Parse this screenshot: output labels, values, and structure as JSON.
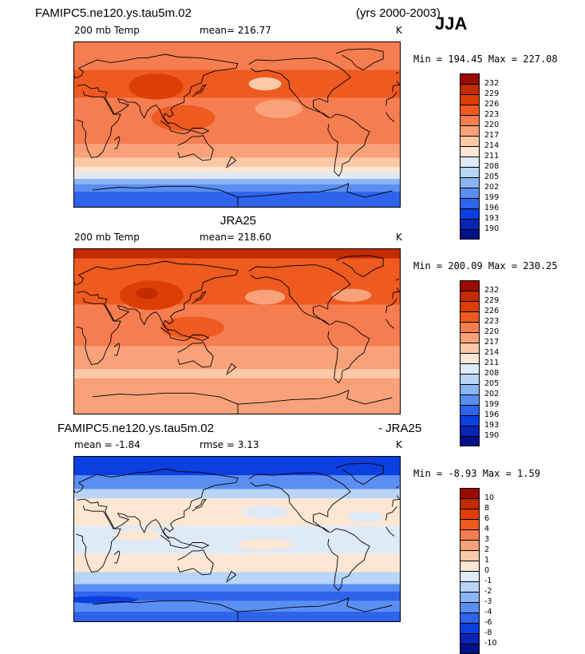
{
  "header": {
    "case_title": "FAMIPC5.ne120.ys.tau5m.02",
    "years": "(yrs 2000-2003)",
    "season": "JJA"
  },
  "chart_data": [
    {
      "type": "heatmap",
      "title": "",
      "field_label": "200 mb Temp",
      "units": "K",
      "mean_label": "mean=",
      "mean": "216.77",
      "minmax_text": "Min = 194.45 Max = 227.08",
      "colorbar_ticks": [
        "232",
        "229",
        "226",
        "223",
        "220",
        "217",
        "214",
        "211",
        "208",
        "205",
        "202",
        "199",
        "196",
        "193",
        "190"
      ],
      "colorbar_colors": [
        "#9b0a00",
        "#c22a00",
        "#dc3e05",
        "#ee5a20",
        "#f67d50",
        "#f9a27a",
        "#fcc9a8",
        "#fde7d3",
        "#deeaf8",
        "#b8d4f7",
        "#8ab4f5",
        "#5b8ef2",
        "#2e63ec",
        "#0b3fdf",
        "#0a24b4",
        "#00118a"
      ],
      "zonal_bands": [
        {
          "lat_top": 90,
          "lat_bottom": 78,
          "value": 221
        },
        {
          "lat_top": 78,
          "lat_bottom": 60,
          "value": 222
        },
        {
          "lat_top": 60,
          "lat_bottom": 30,
          "value": 223
        },
        {
          "lat_top": 30,
          "lat_bottom": 0,
          "value": 220
        },
        {
          "lat_top": 0,
          "lat_bottom": -20,
          "value": 221
        },
        {
          "lat_top": -20,
          "lat_bottom": -35,
          "value": 218
        },
        {
          "lat_top": -35,
          "lat_bottom": -45,
          "value": 215
        },
        {
          "lat_top": -45,
          "lat_bottom": -52,
          "value": 212
        },
        {
          "lat_top": -52,
          "lat_bottom": -58,
          "value": 208
        },
        {
          "lat_top": -58,
          "lat_bottom": -64,
          "value": 204
        },
        {
          "lat_top": -64,
          "lat_bottom": -72,
          "value": 200
        },
        {
          "lat_top": -72,
          "lat_bottom": -90,
          "value": 197
        }
      ],
      "blobs": [
        {
          "lon": 90,
          "lat": 42,
          "rx": 30,
          "ry": 14,
          "value": 226
        },
        {
          "lon": -150,
          "lat": 45,
          "rx": 18,
          "ry": 7,
          "value": 216
        },
        {
          "lon": -135,
          "lat": 18,
          "rx": 26,
          "ry": 10,
          "value": 218
        },
        {
          "lon": 120,
          "lat": 8,
          "rx": 35,
          "ry": 14,
          "value": 223
        },
        {
          "lon": -35,
          "lat": 15,
          "rx": 30,
          "ry": 12,
          "value": 222
        }
      ]
    },
    {
      "type": "heatmap",
      "title": "JRA25",
      "field_label": "200 mb Temp",
      "units": "K",
      "mean_label": "mean=",
      "mean": "218.60",
      "minmax_text": "Min = 200.09 Max = 230.25",
      "colorbar_ticks": [
        "232",
        "229",
        "226",
        "223",
        "220",
        "217",
        "214",
        "211",
        "208",
        "205",
        "202",
        "199",
        "196",
        "193",
        "190"
      ],
      "colorbar_colors": [
        "#9b0a00",
        "#c22a00",
        "#dc3e05",
        "#ee5a20",
        "#f67d50",
        "#f9a27a",
        "#fcc9a8",
        "#fde7d3",
        "#deeaf8",
        "#b8d4f7",
        "#8ab4f5",
        "#5b8ef2",
        "#2e63ec",
        "#0b3fdf",
        "#0a24b4",
        "#00118a"
      ],
      "zonal_bands": [
        {
          "lat_top": 90,
          "lat_bottom": 80,
          "value": 230
        },
        {
          "lat_top": 80,
          "lat_bottom": 65,
          "value": 225
        },
        {
          "lat_top": 65,
          "lat_bottom": 30,
          "value": 223
        },
        {
          "lat_top": 30,
          "lat_bottom": 5,
          "value": 220
        },
        {
          "lat_top": 5,
          "lat_bottom": -15,
          "value": 221
        },
        {
          "lat_top": -15,
          "lat_bottom": -40,
          "value": 218
        },
        {
          "lat_top": -40,
          "lat_bottom": -50,
          "value": 215
        },
        {
          "lat_top": -50,
          "lat_bottom": -90,
          "value": 218
        }
      ],
      "blobs": [
        {
          "lon": 85,
          "lat": 40,
          "rx": 35,
          "ry": 16,
          "value": 226
        },
        {
          "lon": 80,
          "lat": 42,
          "rx": 12,
          "ry": 6,
          "value": 229
        },
        {
          "lon": -150,
          "lat": 38,
          "rx": 22,
          "ry": 8,
          "value": 217
        },
        {
          "lon": -55,
          "lat": 40,
          "rx": 22,
          "ry": 7,
          "value": 217
        },
        {
          "lon": 130,
          "lat": 5,
          "rx": 35,
          "ry": 12,
          "value": 223
        },
        {
          "lon": -70,
          "lat": 20,
          "rx": 30,
          "ry": 8,
          "value": 221
        }
      ]
    },
    {
      "type": "heatmap",
      "title": "FAMIPC5.ne120.ys.tau5m.02",
      "title_right": "- JRA25",
      "units": "K",
      "mean_label": "mean =",
      "mean": "-1.84",
      "rmse_label": "rmse =",
      "rmse": "3.13",
      "minmax_text": "Min =  -8.93 Max =   1.59",
      "colorbar_ticks": [
        "10",
        "8",
        "6",
        "4",
        "3",
        "2",
        "1",
        "0",
        "-1",
        "-2",
        "-3",
        "-4",
        "-6",
        "-8",
        "-10"
      ],
      "colorbar_colors": [
        "#9b0a00",
        "#c22a00",
        "#dc3e05",
        "#ee5a20",
        "#f67d50",
        "#f9a27a",
        "#fcc9a8",
        "#fde7d3",
        "#deeaf8",
        "#b8d4f7",
        "#8ab4f5",
        "#5b8ef2",
        "#2e63ec",
        "#0b3fdf",
        "#0a24b4",
        "#00118a"
      ],
      "zonal_bands": [
        {
          "lat_top": 90,
          "lat_bottom": 70,
          "value": -7
        },
        {
          "lat_top": 70,
          "lat_bottom": 55,
          "value": -3.5
        },
        {
          "lat_top": 55,
          "lat_bottom": 45,
          "value": -1.5
        },
        {
          "lat_top": 45,
          "lat_bottom": 15,
          "value": 0.5
        },
        {
          "lat_top": 15,
          "lat_bottom": -15,
          "value": -0.5
        },
        {
          "lat_top": -15,
          "lat_bottom": -35,
          "value": 0.5
        },
        {
          "lat_top": -35,
          "lat_bottom": -48,
          "value": -1.5
        },
        {
          "lat_top": -48,
          "lat_bottom": -56,
          "value": -3.5
        },
        {
          "lat_top": -56,
          "lat_bottom": -66,
          "value": -5
        },
        {
          "lat_top": -66,
          "lat_bottom": -78,
          "value": -4
        },
        {
          "lat_top": -78,
          "lat_bottom": -90,
          "value": -5
        }
      ],
      "blobs": [
        {
          "lon": -150,
          "lat": 30,
          "rx": 25,
          "ry": 7,
          "value": -0.5
        },
        {
          "lon": -40,
          "lat": 25,
          "rx": 20,
          "ry": 6,
          "value": -0.5
        },
        {
          "lon": 70,
          "lat": 5,
          "rx": 25,
          "ry": 6,
          "value": 0.5
        },
        {
          "lon": -150,
          "lat": -5,
          "rx": 30,
          "ry": 6,
          "value": 0.5
        },
        {
          "lon": 30,
          "lat": -65,
          "rx": 40,
          "ry": 4,
          "value": -7
        }
      ]
    }
  ]
}
